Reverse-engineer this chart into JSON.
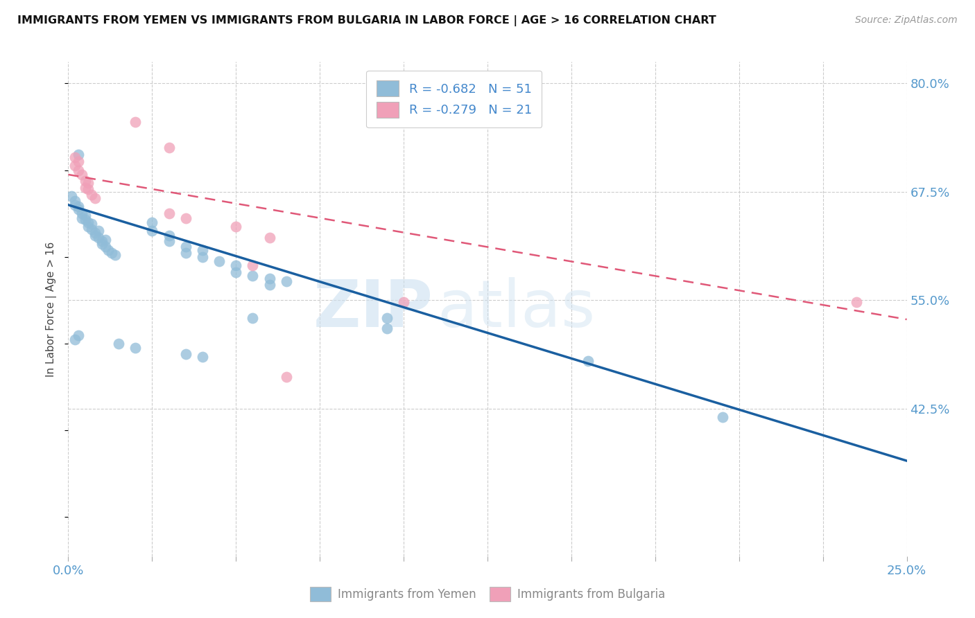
{
  "title": "IMMIGRANTS FROM YEMEN VS IMMIGRANTS FROM BULGARIA IN LABOR FORCE | AGE > 16 CORRELATION CHART",
  "source": "Source: ZipAtlas.com",
  "ylabel": "In Labor Force | Age > 16",
  "xlim": [
    0.0,
    0.25
  ],
  "ylim": [
    0.255,
    0.825
  ],
  "xticks": [
    0.0,
    0.025,
    0.05,
    0.075,
    0.1,
    0.125,
    0.15,
    0.175,
    0.2,
    0.225,
    0.25
  ],
  "xticklabels_show": {
    "0.0": "0.0%",
    "0.25": "25.0%"
  },
  "ytick_positions": [
    0.8,
    0.675,
    0.55,
    0.425
  ],
  "yticklabels": [
    "80.0%",
    "67.5%",
    "55.0%",
    "42.5%"
  ],
  "legend_entries": [
    {
      "label": "R = -0.682   N = 51",
      "color": "#a8c8e8"
    },
    {
      "label": "R = -0.279   N = 21",
      "color": "#f4b0c0"
    }
  ],
  "bottom_legend": [
    {
      "label": "Immigrants from Yemen",
      "color": "#a8c8e8"
    },
    {
      "label": "Immigrants from Bulgaria",
      "color": "#f4b0c0"
    }
  ],
  "blue_scatter": [
    [
      0.001,
      0.67
    ],
    [
      0.002,
      0.665
    ],
    [
      0.002,
      0.66
    ],
    [
      0.003,
      0.658
    ],
    [
      0.003,
      0.655
    ],
    [
      0.004,
      0.65
    ],
    [
      0.004,
      0.645
    ],
    [
      0.005,
      0.648
    ],
    [
      0.005,
      0.643
    ],
    [
      0.006,
      0.64
    ],
    [
      0.006,
      0.635
    ],
    [
      0.007,
      0.638
    ],
    [
      0.007,
      0.632
    ],
    [
      0.008,
      0.628
    ],
    [
      0.008,
      0.625
    ],
    [
      0.009,
      0.63
    ],
    [
      0.009,
      0.622
    ],
    [
      0.01,
      0.618
    ],
    [
      0.01,
      0.615
    ],
    [
      0.011,
      0.62
    ],
    [
      0.011,
      0.612
    ],
    [
      0.012,
      0.608
    ],
    [
      0.013,
      0.605
    ],
    [
      0.014,
      0.602
    ],
    [
      0.003,
      0.718
    ],
    [
      0.025,
      0.64
    ],
    [
      0.025,
      0.63
    ],
    [
      0.03,
      0.625
    ],
    [
      0.03,
      0.618
    ],
    [
      0.035,
      0.612
    ],
    [
      0.035,
      0.605
    ],
    [
      0.04,
      0.608
    ],
    [
      0.04,
      0.6
    ],
    [
      0.045,
      0.595
    ],
    [
      0.05,
      0.59
    ],
    [
      0.05,
      0.582
    ],
    [
      0.055,
      0.578
    ],
    [
      0.06,
      0.575
    ],
    [
      0.06,
      0.568
    ],
    [
      0.065,
      0.572
    ],
    [
      0.002,
      0.505
    ],
    [
      0.003,
      0.51
    ],
    [
      0.015,
      0.5
    ],
    [
      0.02,
      0.495
    ],
    [
      0.035,
      0.488
    ],
    [
      0.04,
      0.485
    ],
    [
      0.055,
      0.53
    ],
    [
      0.095,
      0.53
    ],
    [
      0.095,
      0.518
    ],
    [
      0.155,
      0.48
    ],
    [
      0.195,
      0.415
    ]
  ],
  "pink_scatter": [
    [
      0.002,
      0.715
    ],
    [
      0.002,
      0.705
    ],
    [
      0.003,
      0.71
    ],
    [
      0.003,
      0.7
    ],
    [
      0.004,
      0.695
    ],
    [
      0.005,
      0.688
    ],
    [
      0.005,
      0.68
    ],
    [
      0.006,
      0.685
    ],
    [
      0.006,
      0.678
    ],
    [
      0.007,
      0.672
    ],
    [
      0.008,
      0.668
    ],
    [
      0.02,
      0.756
    ],
    [
      0.03,
      0.726
    ],
    [
      0.03,
      0.65
    ],
    [
      0.035,
      0.645
    ],
    [
      0.05,
      0.635
    ],
    [
      0.06,
      0.622
    ],
    [
      0.055,
      0.59
    ],
    [
      0.065,
      0.462
    ],
    [
      0.1,
      0.548
    ],
    [
      0.235,
      0.548
    ]
  ],
  "blue_line_x": [
    0.0,
    0.25
  ],
  "blue_line_y": [
    0.66,
    0.365
  ],
  "pink_line_x": [
    0.0,
    0.25
  ],
  "pink_line_y": [
    0.695,
    0.528
  ],
  "dot_color_blue": "#90bcd8",
  "dot_color_pink": "#f0a0b8",
  "line_color_blue": "#1a5fa0",
  "line_color_pink": "#e05878",
  "watermark_zip": "ZIP",
  "watermark_atlas": "atlas",
  "background_color": "#ffffff",
  "grid_color": "#cccccc"
}
